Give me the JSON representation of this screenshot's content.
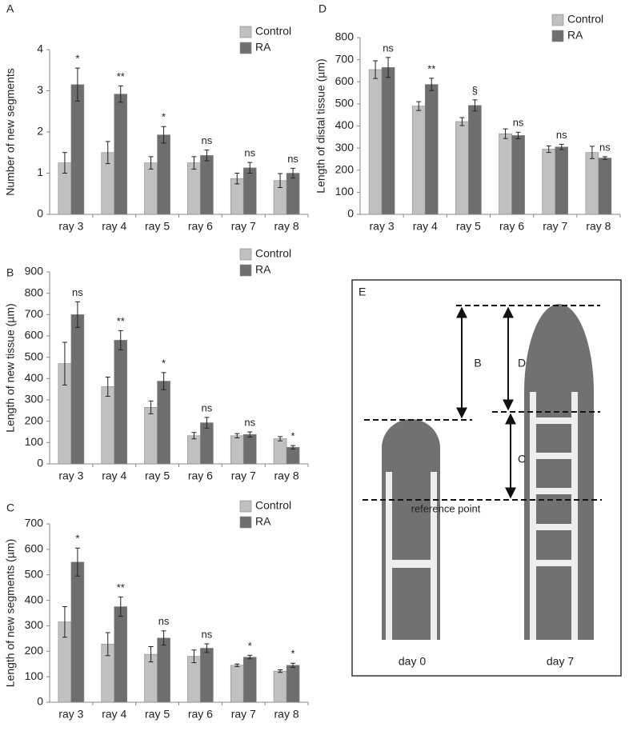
{
  "chart_data": [
    {
      "type": "bar",
      "label": "A",
      "y_label": "Number of new segments",
      "categories": [
        "ray 3",
        "ray 4",
        "ray 5",
        "ray 6",
        "ray 7",
        "ray 8"
      ],
      "series": [
        {
          "name": "Control",
          "color": "#c0c0c0",
          "values": [
            1.25,
            1.5,
            1.25,
            1.25,
            0.87,
            0.82
          ],
          "errors": [
            0.25,
            0.27,
            0.15,
            0.15,
            0.13,
            0.17
          ]
        },
        {
          "name": "RA",
          "color": "#6e6e6e",
          "values": [
            3.15,
            2.92,
            1.93,
            1.43,
            1.13,
            1.0
          ],
          "errors": [
            0.4,
            0.2,
            0.2,
            0.13,
            0.13,
            0.12
          ]
        }
      ],
      "annotations": [
        "*",
        "**",
        "*",
        "ns",
        "ns",
        "ns"
      ],
      "ylim": [
        0,
        4
      ],
      "yticks": [
        0,
        1,
        2,
        3,
        4
      ],
      "legend": "upper right"
    },
    {
      "type": "bar",
      "label": "B",
      "y_label": "Length of new tissue (µm)",
      "categories": [
        "ray 3",
        "ray 4",
        "ray 5",
        "ray 6",
        "ray 7",
        "ray 8"
      ],
      "series": [
        {
          "name": "Control",
          "color": "#c0c0c0",
          "values": [
            470,
            362,
            265,
            132,
            132,
            118
          ],
          "errors": [
            100,
            45,
            30,
            15,
            10,
            10
          ]
        },
        {
          "name": "RA",
          "color": "#6e6e6e",
          "values": [
            700,
            580,
            388,
            193,
            138,
            78
          ],
          "errors": [
            60,
            45,
            40,
            25,
            12,
            8
          ]
        }
      ],
      "annotations": [
        "ns",
        "**",
        "*",
        "ns",
        "ns",
        "*"
      ],
      "ylim": [
        0,
        900
      ],
      "yticks": [
        0,
        100,
        200,
        300,
        400,
        500,
        600,
        700,
        800,
        900
      ],
      "legend": "upper right"
    },
    {
      "type": "bar",
      "label": "C",
      "y_label": "Length of new segments (µm)",
      "categories": [
        "ray 3",
        "ray 4",
        "ray 5",
        "ray 6",
        "ray 7",
        "ray 8"
      ],
      "series": [
        {
          "name": "Control",
          "color": "#c0c0c0",
          "values": [
            315,
            228,
            188,
            180,
            145,
            122
          ],
          "errors": [
            60,
            45,
            30,
            25,
            5,
            5
          ]
        },
        {
          "name": "RA",
          "color": "#6e6e6e",
          "values": [
            550,
            375,
            252,
            212,
            177,
            145
          ],
          "errors": [
            55,
            38,
            28,
            17,
            7,
            8
          ]
        }
      ],
      "annotations": [
        "*",
        "**",
        "ns",
        "ns",
        "*",
        "*"
      ],
      "ylim": [
        0,
        700
      ],
      "yticks": [
        0,
        100,
        200,
        300,
        400,
        500,
        600,
        700
      ],
      "legend": "upper right"
    },
    {
      "type": "bar",
      "label": "D",
      "y_label": "Length of distal tissue (µm)",
      "categories": [
        "ray 3",
        "ray 4",
        "ray 5",
        "ray 6",
        "ray 7",
        "ray 8"
      ],
      "series": [
        {
          "name": "Control",
          "color": "#c0c0c0",
          "values": [
            655,
            490,
            420,
            365,
            295,
            280
          ],
          "errors": [
            40,
            20,
            18,
            22,
            15,
            28
          ]
        },
        {
          "name": "RA",
          "color": "#6e6e6e",
          "values": [
            665,
            588,
            493,
            357,
            305,
            255
          ],
          "errors": [
            45,
            28,
            25,
            15,
            12,
            6
          ]
        }
      ],
      "annotations": [
        "ns",
        "**",
        "§",
        "ns",
        "ns",
        "ns"
      ],
      "ylim": [
        0,
        800
      ],
      "yticks": [
        0,
        100,
        200,
        300,
        400,
        500,
        600,
        700,
        800
      ],
      "legend": "upper right"
    }
  ],
  "diagram": {
    "label": "E",
    "b": "B",
    "d": "D",
    "c": "C",
    "reference": "reference point",
    "day0": "day 0",
    "day7": "day 7"
  }
}
